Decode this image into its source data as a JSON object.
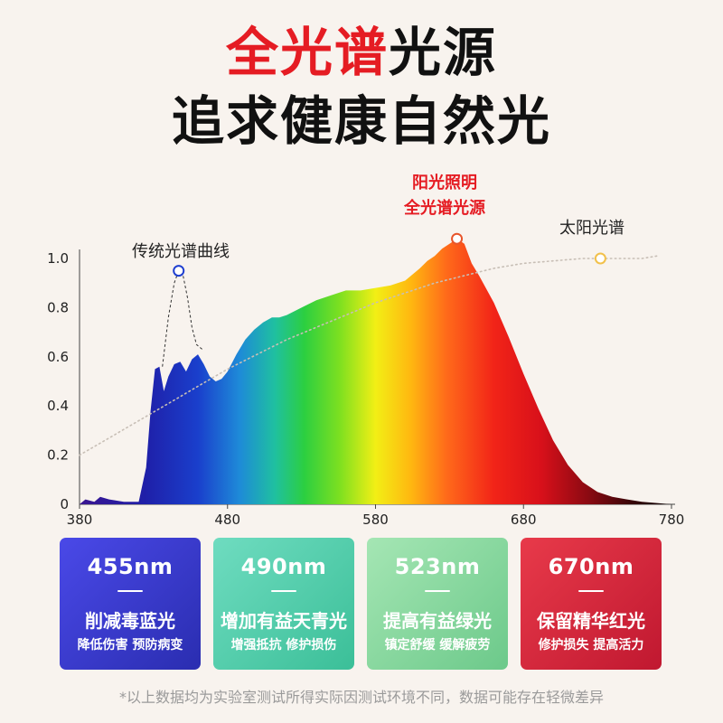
{
  "heading": {
    "line1_highlight": "全光谱",
    "line1_rest": "光源",
    "line2": "追求健康自然光"
  },
  "chart_data": {
    "type": "area",
    "xlim": [
      380,
      780
    ],
    "ylim": [
      0,
      1.0
    ],
    "xticks": [
      "380",
      "480",
      "580",
      "680",
      "780"
    ],
    "yticks": [
      "0",
      "0.2",
      "0.4",
      "0.6",
      "0.8",
      "1.0"
    ],
    "series": [
      {
        "name": "阳光照明全光谱光源",
        "x": [
          380,
          384,
          390,
          394,
          400,
          410,
          420,
          425,
          428,
          431,
          434,
          437,
          440,
          444,
          448,
          452,
          456,
          460,
          464,
          468,
          472,
          476,
          480,
          486,
          492,
          498,
          504,
          510,
          515,
          520,
          530,
          540,
          550,
          560,
          570,
          580,
          590,
          600,
          610,
          615,
          620,
          625,
          630,
          635,
          640,
          645,
          650,
          660,
          670,
          680,
          690,
          700,
          710,
          720,
          730,
          740,
          750,
          760,
          770,
          780
        ],
        "y": [
          0,
          0.02,
          0.01,
          0.03,
          0.02,
          0.01,
          0.01,
          0.15,
          0.38,
          0.55,
          0.56,
          0.46,
          0.52,
          0.57,
          0.58,
          0.54,
          0.59,
          0.61,
          0.57,
          0.52,
          0.5,
          0.51,
          0.54,
          0.61,
          0.67,
          0.71,
          0.74,
          0.76,
          0.76,
          0.77,
          0.8,
          0.83,
          0.85,
          0.87,
          0.87,
          0.88,
          0.89,
          0.91,
          0.96,
          0.99,
          1.01,
          1.04,
          1.06,
          1.08,
          1.06,
          0.98,
          0.93,
          0.82,
          0.68,
          0.53,
          0.39,
          0.26,
          0.16,
          0.09,
          0.05,
          0.03,
          0.02,
          0.01,
          0.005,
          0.0
        ]
      },
      {
        "name": "传统光谱曲线",
        "x": [
          436,
          440,
          444,
          447,
          450,
          453,
          456,
          459,
          463
        ],
        "y": [
          0.56,
          0.76,
          0.9,
          0.95,
          0.93,
          0.84,
          0.72,
          0.65,
          0.63
        ]
      },
      {
        "name": "太阳光谱",
        "x": [
          380,
          400,
          420,
          440,
          460,
          480,
          500,
          520,
          540,
          560,
          580,
          600,
          620,
          640,
          660,
          680,
          700,
          720,
          740,
          760,
          770
        ],
        "y": [
          0.2,
          0.27,
          0.34,
          0.41,
          0.48,
          0.55,
          0.61,
          0.67,
          0.72,
          0.77,
          0.82,
          0.86,
          0.9,
          0.93,
          0.96,
          0.98,
          0.99,
          1.0,
          1.0,
          1.0,
          1.01
        ]
      }
    ],
    "annotations": [
      {
        "text": "阳光照明",
        "color": "#e51c23"
      },
      {
        "text": "全光谱光源",
        "color": "#e51c23"
      },
      {
        "text": "传统光谱曲线",
        "color": "#222222"
      },
      {
        "text": "太阳光谱",
        "color": "#222222"
      }
    ],
    "markers": [
      {
        "series": "传统光谱曲线",
        "x": 447,
        "y": 0.95,
        "color": "#1f3fd0"
      },
      {
        "series": "阳光照明全光谱光源",
        "x": 635,
        "y": 1.08,
        "color": "#e8552b"
      },
      {
        "series": "太阳光谱",
        "x": 732,
        "y": 1.0,
        "color": "#f2c14b"
      }
    ]
  },
  "cards": [
    {
      "wavelength": "455nm",
      "title": "削减毒蓝光",
      "subtitle": "降低伤害 预防病变"
    },
    {
      "wavelength": "490nm",
      "title": "增加有益天青光",
      "subtitle": "增强抵抗 修护损伤"
    },
    {
      "wavelength": "523nm",
      "title": "提高有益绿光",
      "subtitle": "镇定舒缓 缓解疲劳"
    },
    {
      "wavelength": "670nm",
      "title": "保留精华红光",
      "subtitle": "修护损失 提高活力"
    }
  ],
  "footnote": "*以上数据均为实验室测试所得实际因测试环境不同，数据可能存在轻微差异"
}
